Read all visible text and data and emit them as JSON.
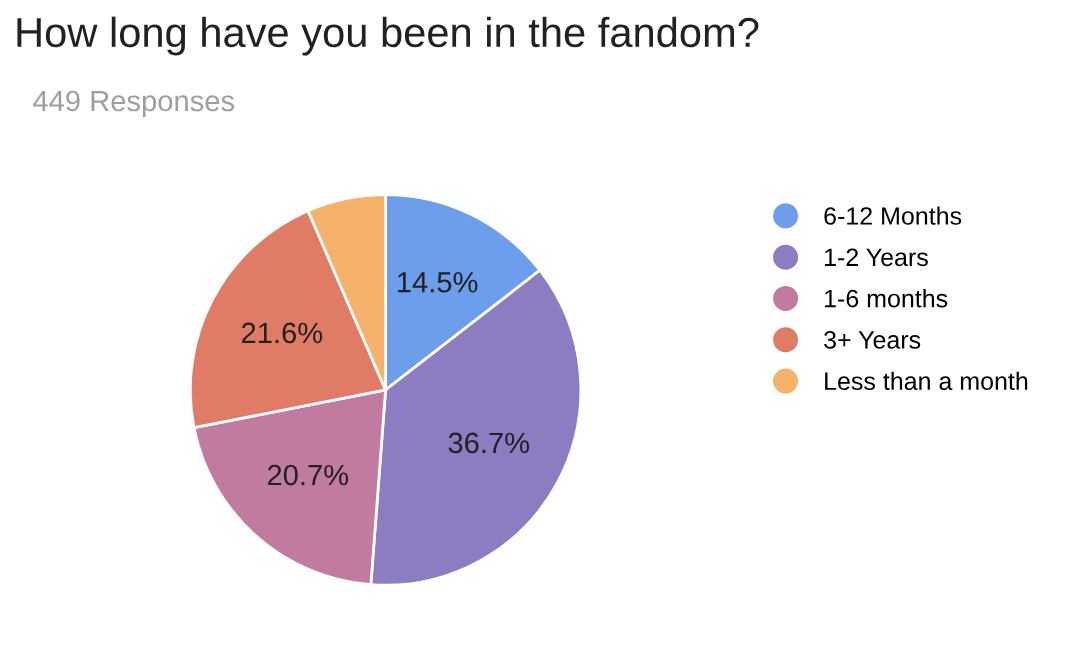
{
  "chart_data": {
    "type": "pie",
    "title": "How long have you been in the fandom?",
    "subtitle": "449 Responses",
    "categories": [
      "6-12 Months",
      "1-2 Years",
      "1-6 months",
      "3+ Years",
      "Less than a month"
    ],
    "values": [
      14.5,
      36.7,
      20.7,
      21.6,
      6.5
    ],
    "value_labels": [
      "14.5%",
      "36.7%",
      "20.7%",
      "21.6%",
      null
    ],
    "colors": [
      "#6d9eeb",
      "#8e7cc3",
      "#c27ba0",
      "#e07b66",
      "#f6b26b"
    ],
    "legend": "right"
  }
}
